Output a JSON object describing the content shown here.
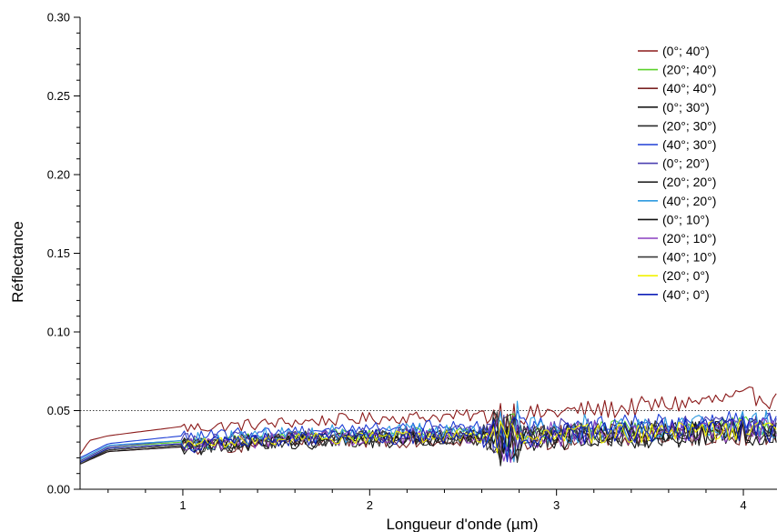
{
  "chart_data": {
    "type": "line",
    "xlabel": "Longueur d'onde (µm)",
    "ylabel": "Réflectance",
    "xlim": [
      0.45,
      4.18
    ],
    "ylim": [
      0.0,
      0.3
    ],
    "x_ticks": [
      {
        "value": 1,
        "label": "1"
      },
      {
        "value": 2,
        "label": "2"
      },
      {
        "value": 3,
        "label": "3"
      },
      {
        "value": 4,
        "label": "4"
      }
    ],
    "y_ticks": [
      {
        "value": 0.0,
        "label": "0.00"
      },
      {
        "value": 0.05,
        "label": "0.05"
      },
      {
        "value": 0.1,
        "label": "0.10"
      },
      {
        "value": 0.15,
        "label": "0.15"
      },
      {
        "value": 0.2,
        "label": "0.20"
      },
      {
        "value": 0.25,
        "label": "0.25"
      },
      {
        "value": 0.3,
        "label": "0.30"
      }
    ],
    "reference_line": {
      "y": 0.05,
      "style": "dotted"
    },
    "grid": false,
    "legend_position": "top-right",
    "series": [
      {
        "name": "(0°; 40°)",
        "color": "#8b1a1a",
        "points": [
          [
            0.45,
            0.022
          ],
          [
            0.5,
            0.031
          ],
          [
            0.6,
            0.034
          ],
          [
            0.8,
            0.037
          ],
          [
            1.0,
            0.04
          ],
          [
            1.02,
            0.039
          ],
          [
            1.2,
            0.04
          ],
          [
            1.5,
            0.042
          ],
          [
            1.8,
            0.044
          ],
          [
            2.0,
            0.045
          ],
          [
            2.3,
            0.046
          ],
          [
            2.6,
            0.047
          ],
          [
            2.7,
            0.048
          ],
          [
            2.75,
            0.046
          ],
          [
            3.0,
            0.049
          ],
          [
            3.3,
            0.051
          ],
          [
            3.6,
            0.054
          ],
          [
            3.9,
            0.057
          ],
          [
            4.0,
            0.058
          ],
          [
            4.1,
            0.06
          ],
          [
            4.18,
            0.055
          ]
        ],
        "noise": 0.004
      },
      {
        "name": "(20°; 40°)",
        "color": "#5bd12a",
        "points": [
          [
            0.45,
            0.018
          ],
          [
            0.6,
            0.027
          ],
          [
            1.0,
            0.03
          ],
          [
            1.05,
            0.029
          ],
          [
            1.5,
            0.033
          ],
          [
            2.0,
            0.035
          ],
          [
            2.5,
            0.036
          ],
          [
            2.7,
            0.035
          ],
          [
            3.0,
            0.037
          ],
          [
            3.5,
            0.038
          ],
          [
            4.0,
            0.04
          ],
          [
            4.18,
            0.041
          ]
        ],
        "noise": 0.004
      },
      {
        "name": "(40°; 40°)",
        "color": "#7a2323",
        "points": [
          [
            0.45,
            0.016
          ],
          [
            0.6,
            0.024
          ],
          [
            1.0,
            0.027
          ],
          [
            1.05,
            0.026
          ],
          [
            1.5,
            0.03
          ],
          [
            2.0,
            0.031
          ],
          [
            2.5,
            0.032
          ],
          [
            2.7,
            0.031
          ],
          [
            3.0,
            0.033
          ],
          [
            3.5,
            0.034
          ],
          [
            4.0,
            0.036
          ],
          [
            4.18,
            0.035
          ]
        ],
        "noise": 0.005
      },
      {
        "name": "(0°; 30°)",
        "color": "#1a1a1a",
        "points": [
          [
            0.45,
            0.017
          ],
          [
            0.6,
            0.025
          ],
          [
            1.0,
            0.028
          ],
          [
            1.05,
            0.027
          ],
          [
            1.5,
            0.031
          ],
          [
            2.0,
            0.032
          ],
          [
            2.5,
            0.033
          ],
          [
            2.7,
            0.032
          ],
          [
            3.0,
            0.034
          ],
          [
            3.5,
            0.035
          ],
          [
            4.0,
            0.037
          ],
          [
            4.18,
            0.036
          ]
        ],
        "noise": 0.005
      },
      {
        "name": "(20°; 30°)",
        "color": "#2b2b2b",
        "points": [
          [
            0.45,
            0.017
          ],
          [
            0.6,
            0.026
          ],
          [
            1.0,
            0.029
          ],
          [
            1.05,
            0.028
          ],
          [
            1.5,
            0.032
          ],
          [
            2.0,
            0.033
          ],
          [
            2.5,
            0.034
          ],
          [
            2.7,
            0.033
          ],
          [
            3.0,
            0.035
          ],
          [
            3.5,
            0.036
          ],
          [
            4.0,
            0.038
          ],
          [
            4.18,
            0.037
          ]
        ],
        "noise": 0.005
      },
      {
        "name": "(40°; 30°)",
        "color": "#1f3fd6",
        "points": [
          [
            0.45,
            0.02
          ],
          [
            0.6,
            0.029
          ],
          [
            1.0,
            0.034
          ],
          [
            1.05,
            0.033
          ],
          [
            1.5,
            0.037
          ],
          [
            2.0,
            0.039
          ],
          [
            2.5,
            0.04
          ],
          [
            2.7,
            0.039
          ],
          [
            3.0,
            0.041
          ],
          [
            3.5,
            0.042
          ],
          [
            4.0,
            0.044
          ],
          [
            4.18,
            0.045
          ]
        ],
        "noise": 0.004
      },
      {
        "name": "(0°; 20°)",
        "color": "#4a3fb0",
        "points": [
          [
            0.45,
            0.018
          ],
          [
            0.6,
            0.027
          ],
          [
            1.0,
            0.031
          ],
          [
            1.05,
            0.03
          ],
          [
            1.5,
            0.034
          ],
          [
            2.0,
            0.035
          ],
          [
            2.5,
            0.036
          ],
          [
            2.7,
            0.035
          ],
          [
            3.0,
            0.037
          ],
          [
            3.5,
            0.038
          ],
          [
            4.0,
            0.04
          ],
          [
            4.18,
            0.041
          ]
        ],
        "noise": 0.005
      },
      {
        "name": "(20°; 20°)",
        "color": "#262626",
        "points": [
          [
            0.45,
            0.016
          ],
          [
            0.6,
            0.025
          ],
          [
            1.0,
            0.028
          ],
          [
            1.05,
            0.027
          ],
          [
            1.5,
            0.031
          ],
          [
            2.0,
            0.032
          ],
          [
            2.5,
            0.033
          ],
          [
            2.7,
            0.032
          ],
          [
            3.0,
            0.034
          ],
          [
            3.5,
            0.035
          ],
          [
            4.0,
            0.037
          ],
          [
            4.18,
            0.036
          ]
        ],
        "noise": 0.005
      },
      {
        "name": "(40°; 20°)",
        "color": "#2f9be0",
        "points": [
          [
            0.45,
            0.019
          ],
          [
            0.6,
            0.028
          ],
          [
            1.0,
            0.031
          ],
          [
            1.05,
            0.03
          ],
          [
            1.5,
            0.034
          ],
          [
            2.0,
            0.036
          ],
          [
            2.5,
            0.037
          ],
          [
            2.7,
            0.036
          ],
          [
            3.0,
            0.038
          ],
          [
            3.5,
            0.039
          ],
          [
            4.0,
            0.041
          ],
          [
            4.18,
            0.042
          ]
        ],
        "noise": 0.006
      },
      {
        "name": "(0°; 10°)",
        "color": "#111111",
        "points": [
          [
            0.45,
            0.016
          ],
          [
            0.6,
            0.024
          ],
          [
            1.0,
            0.027
          ],
          [
            1.05,
            0.026
          ],
          [
            1.5,
            0.03
          ],
          [
            2.0,
            0.031
          ],
          [
            2.5,
            0.032
          ],
          [
            2.7,
            0.031
          ],
          [
            3.0,
            0.033
          ],
          [
            3.5,
            0.034
          ],
          [
            4.0,
            0.036
          ],
          [
            4.18,
            0.035
          ]
        ],
        "noise": 0.005
      },
      {
        "name": "(20°; 10°)",
        "color": "#8a3fc0",
        "points": [
          [
            0.45,
            0.017
          ],
          [
            0.6,
            0.026
          ],
          [
            1.0,
            0.029
          ],
          [
            1.05,
            0.028
          ],
          [
            1.5,
            0.032
          ],
          [
            2.0,
            0.033
          ],
          [
            2.5,
            0.034
          ],
          [
            2.7,
            0.033
          ],
          [
            3.0,
            0.035
          ],
          [
            3.5,
            0.036
          ],
          [
            4.0,
            0.038
          ],
          [
            4.18,
            0.037
          ]
        ],
        "noise": 0.005
      },
      {
        "name": "(40°; 10°)",
        "color": "#3a3a3a",
        "points": [
          [
            0.45,
            0.016
          ],
          [
            0.6,
            0.025
          ],
          [
            1.0,
            0.028
          ],
          [
            1.05,
            0.027
          ],
          [
            1.5,
            0.031
          ],
          [
            2.0,
            0.032
          ],
          [
            2.5,
            0.033
          ],
          [
            2.7,
            0.032
          ],
          [
            3.0,
            0.034
          ],
          [
            3.5,
            0.035
          ],
          [
            4.0,
            0.037
          ],
          [
            4.18,
            0.036
          ]
        ],
        "noise": 0.005
      },
      {
        "name": "(20°; 0°)",
        "color": "#f2f200",
        "points": [
          [
            0.45,
            0.017
          ],
          [
            0.6,
            0.026
          ],
          [
            1.0,
            0.029
          ],
          [
            1.05,
            0.028
          ],
          [
            1.5,
            0.032
          ],
          [
            2.0,
            0.033
          ],
          [
            2.5,
            0.034
          ],
          [
            2.7,
            0.033
          ],
          [
            3.0,
            0.035
          ],
          [
            3.5,
            0.036
          ],
          [
            4.0,
            0.038
          ],
          [
            4.18,
            0.037
          ]
        ],
        "noise": 0.004
      },
      {
        "name": "(40°; 0°)",
        "color": "#0f1fb8",
        "points": [
          [
            0.45,
            0.017
          ],
          [
            0.6,
            0.026
          ],
          [
            1.0,
            0.029
          ],
          [
            1.05,
            0.028
          ],
          [
            1.5,
            0.032
          ],
          [
            2.0,
            0.033
          ],
          [
            2.5,
            0.034
          ],
          [
            2.7,
            0.033
          ],
          [
            3.0,
            0.035
          ],
          [
            3.5,
            0.036
          ],
          [
            4.0,
            0.038
          ],
          [
            4.18,
            0.037
          ]
        ],
        "noise": 0.005
      }
    ]
  }
}
